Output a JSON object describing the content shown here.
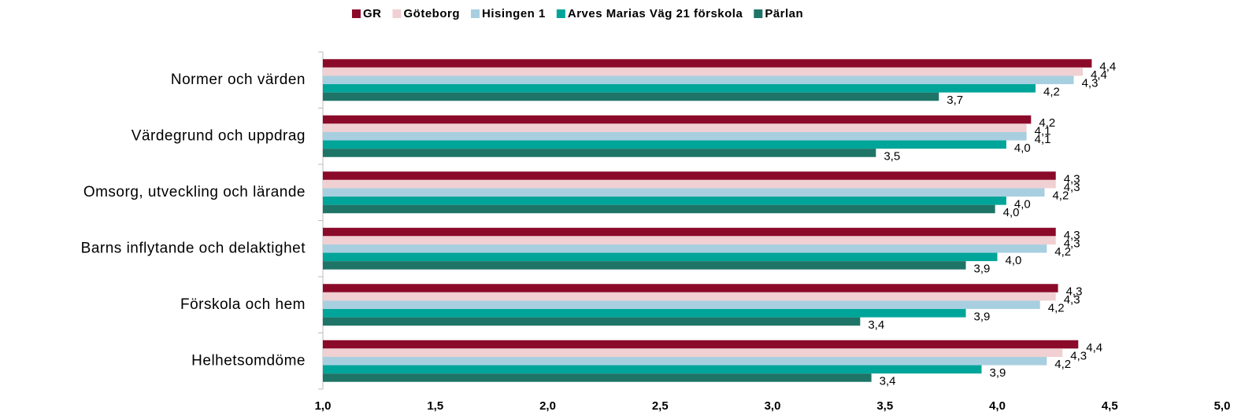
{
  "chart_data": {
    "type": "barh",
    "categories": [
      "Normer och värden",
      "Värdegrund och uppdrag",
      "Omsorg, utveckling och lärande",
      "Barns inflytande och delaktighet",
      "Förskola och hem",
      "Helhetsomdöme"
    ],
    "series": [
      {
        "name": "GR",
        "color": "#8b0a2a",
        "values": [
          4.42,
          4.15,
          4.26,
          4.26,
          4.27,
          4.36
        ],
        "value_labels": [
          "4,4",
          "4,2",
          "4,3",
          "4,3",
          "4,3",
          "4,4"
        ]
      },
      {
        "name": "Göteborg",
        "color": "#f0d0d2",
        "values": [
          4.38,
          4.13,
          4.26,
          4.26,
          4.26,
          4.29
        ],
        "value_labels": [
          "4,4",
          "4,1",
          "4,3",
          "4,3",
          "4,3",
          "4,3"
        ]
      },
      {
        "name": "Hisingen 1",
        "color": "#a8cfe0",
        "values": [
          4.34,
          4.13,
          4.21,
          4.22,
          4.19,
          4.22
        ],
        "value_labels": [
          "4,3",
          "4,1",
          "4,2",
          "4,2",
          "4,2",
          "4,2"
        ]
      },
      {
        "name": "Arves Marias Väg 21 förskola",
        "color": "#00a59a",
        "values": [
          4.17,
          4.04,
          4.04,
          4.0,
          3.86,
          3.93
        ],
        "value_labels": [
          "4,2",
          "4,0",
          "4,0",
          "4,0",
          "3,9",
          "3,9"
        ]
      },
      {
        "name": "Pärlan",
        "color": "#1d7467",
        "values": [
          3.74,
          3.46,
          3.99,
          3.86,
          3.39,
          3.44
        ],
        "value_labels": [
          "3,7",
          "3,5",
          "4,0",
          "3,9",
          "3,4",
          "3,4"
        ]
      }
    ],
    "xlim": [
      1.0,
      5.0
    ],
    "xticks": [
      {
        "value": 1.0,
        "label": "1,0"
      },
      {
        "value": 1.5,
        "label": "1,5"
      },
      {
        "value": 2.0,
        "label": "2,0"
      },
      {
        "value": 2.5,
        "label": "2,5"
      },
      {
        "value": 3.0,
        "label": "3,0"
      },
      {
        "value": 3.5,
        "label": "3,5"
      },
      {
        "value": 4.0,
        "label": "4,0"
      },
      {
        "value": 4.5,
        "label": "4,5"
      },
      {
        "value": 5.0,
        "label": "5,0"
      }
    ],
    "legend": "top"
  }
}
